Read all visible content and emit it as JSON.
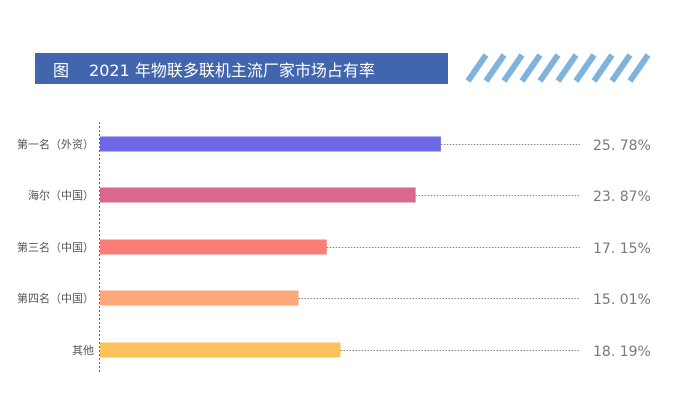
{
  "title": {
    "prefix": "图",
    "text": "2021 年物联多联机主流厂家市场占有率"
  },
  "chart_data": {
    "type": "bar",
    "orientation": "horizontal",
    "title": "2021 年物联多联机主流厂家市场占有率",
    "categories": [
      "第一名（外资）",
      "海尔（中国）",
      "第三名（中国）",
      "第四名（中国）",
      "其他"
    ],
    "values": [
      25.78,
      23.87,
      17.15,
      15.01,
      18.19
    ],
    "value_labels": [
      "25. 78%",
      "23. 87%",
      "17. 15%",
      "15. 01%",
      "18. 19%"
    ],
    "colors": [
      "#6e67e3",
      "#d9688e",
      "#fb7d78",
      "#fea779",
      "#fec25d"
    ],
    "xlim": [
      0,
      36.3
    ],
    "grid": false,
    "legend": "none"
  },
  "decoration": {
    "stripe_color": "#7fb3dd"
  }
}
